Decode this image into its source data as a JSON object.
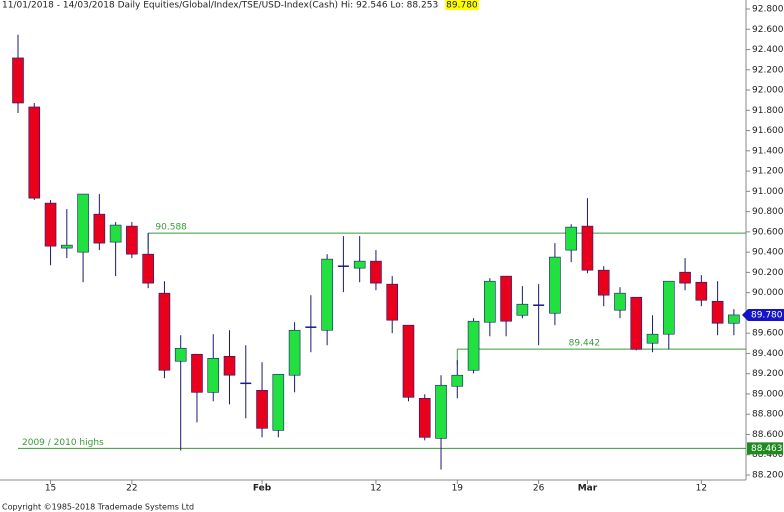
{
  "chart_data": {
    "type": "candlestick",
    "title": "11/01/2018 - 14/03/2018  Daily  Equities/Global/Index/TSE/USD-Index(Cash)  Hi: 92.546  Lo: 88.253",
    "last": {
      "value": 89.78,
      "label": "89.780"
    },
    "footer": "Copyright ©1985-2018 Trademade Systems Ltd",
    "categories": [
      null,
      null,
      "15",
      null,
      null,
      null,
      null,
      "22",
      null,
      null,
      null,
      null,
      null,
      null,
      null,
      "Feb",
      null,
      null,
      null,
      null,
      null,
      null,
      "12",
      null,
      null,
      null,
      null,
      "19",
      null,
      null,
      null,
      null,
      "26",
      null,
      null,
      "Mar",
      null,
      null,
      null,
      null,
      null,
      null,
      "12",
      null,
      null
    ],
    "open": [
      92.317,
      91.833,
      90.884,
      90.44,
      90.4,
      90.775,
      90.499,
      90.657,
      90.38,
      89.995,
      89.323,
      89.392,
      89.016,
      89.372,
      89.105,
      89.036,
      88.641,
      89.185,
      89.659,
      89.629,
      90.261,
      90.242,
      90.311,
      90.084,
      89.679,
      88.957,
      88.562,
      89.076,
      89.234,
      89.708,
      90.163,
      89.777,
      89.876,
      89.797,
      90.42,
      90.657,
      90.222,
      89.827,
      89.955,
      89.501,
      89.59,
      90.202,
      90.103,
      89.915,
      89.698
    ],
    "high": [
      92.546,
      91.872,
      90.914,
      90.825,
      90.973,
      90.973,
      90.696,
      90.696,
      90.588,
      90.113,
      89.58,
      89.392,
      89.59,
      89.629,
      89.481,
      89.313,
      89.194,
      89.708,
      89.975,
      90.38,
      90.558,
      90.558,
      90.42,
      90.163,
      89.679,
      88.997,
      89.185,
      89.333,
      89.748,
      90.143,
      90.163,
      90.064,
      90.084,
      90.489,
      90.676,
      90.933,
      90.261,
      90.054,
      89.955,
      89.777,
      90.113,
      90.341,
      90.173,
      90.113,
      89.837
    ],
    "low": [
      91.773,
      90.914,
      90.271,
      90.341,
      90.103,
      90.42,
      90.163,
      90.341,
      90.044,
      89.155,
      88.443,
      88.72,
      88.928,
      88.898,
      88.76,
      88.572,
      88.572,
      89.016,
      89.412,
      89.481,
      90.005,
      90.103,
      90.024,
      89.6,
      88.928,
      88.542,
      88.253,
      88.957,
      89.204,
      89.57,
      89.57,
      89.748,
      89.481,
      89.679,
      90.301,
      90.192,
      89.866,
      89.748,
      89.431,
      89.412,
      89.441,
      90.024,
      89.866,
      89.58,
      89.58
    ],
    "close": [
      91.872,
      90.933,
      90.459,
      90.469,
      90.973,
      90.489,
      90.667,
      90.38,
      90.094,
      89.234,
      89.451,
      89.016,
      89.352,
      89.185,
      89.105,
      88.661,
      89.194,
      89.629,
      89.659,
      90.331,
      90.261,
      90.311,
      90.094,
      89.728,
      88.967,
      88.572,
      89.086,
      89.185,
      89.718,
      90.113,
      89.718,
      89.886,
      89.876,
      90.351,
      90.647,
      90.222,
      89.975,
      89.995,
      89.441,
      89.59,
      90.113,
      90.094,
      89.925,
      89.698,
      89.78
    ],
    "up_color": "#22e040",
    "down_color": "#e8001c",
    "wick_color": "#1a1a6e",
    "doji_color": "#1a1a8e",
    "lines": [
      {
        "value": 90.588,
        "label": "90.588",
        "color": "#3a9a3a"
      },
      {
        "value": 89.442,
        "label": "89.442",
        "color": "#3a9a3a"
      },
      {
        "value": 88.463,
        "label": "2009 / 2010 highs",
        "tag": "88.463",
        "color": "#3a9a3a"
      }
    ],
    "last_tag_color": "#1414c8",
    "line_tag_color": "#1f8a1f",
    "highlight_color": "#ffff00",
    "ylim": [
      88.2,
      92.8
    ],
    "yticks": [
      {
        "value": 88.2,
        "label": "88.200"
      },
      {
        "value": 88.4,
        "label": "88.400"
      },
      {
        "value": 88.6,
        "label": "88.600"
      },
      {
        "value": 88.8,
        "label": "88.800"
      },
      {
        "value": 89.0,
        "label": "89.000"
      },
      {
        "value": 89.2,
        "label": "89.200"
      },
      {
        "value": 89.4,
        "label": "89.400"
      },
      {
        "value": 89.6,
        "label": "89.600"
      },
      {
        "value": 89.8,
        "label": "89.800"
      },
      {
        "value": 90.0,
        "label": "90.000"
      },
      {
        "value": 90.2,
        "label": "90.200"
      },
      {
        "value": 90.4,
        "label": "90.400"
      },
      {
        "value": 90.6,
        "label": "90.600"
      },
      {
        "value": 90.8,
        "label": "90.800"
      },
      {
        "value": 91.0,
        "label": "91.000"
      },
      {
        "value": 91.2,
        "label": "91.200"
      },
      {
        "value": 91.4,
        "label": "91.400"
      },
      {
        "value": 91.6,
        "label": "91.600"
      },
      {
        "value": 91.8,
        "label": "91.800"
      },
      {
        "value": 92.0,
        "label": "92.000"
      },
      {
        "value": 92.2,
        "label": "92.200"
      },
      {
        "value": 92.4,
        "label": "92.400"
      },
      {
        "value": 92.6,
        "label": "92.600"
      },
      {
        "value": 92.8,
        "label": "92.800"
      }
    ]
  }
}
